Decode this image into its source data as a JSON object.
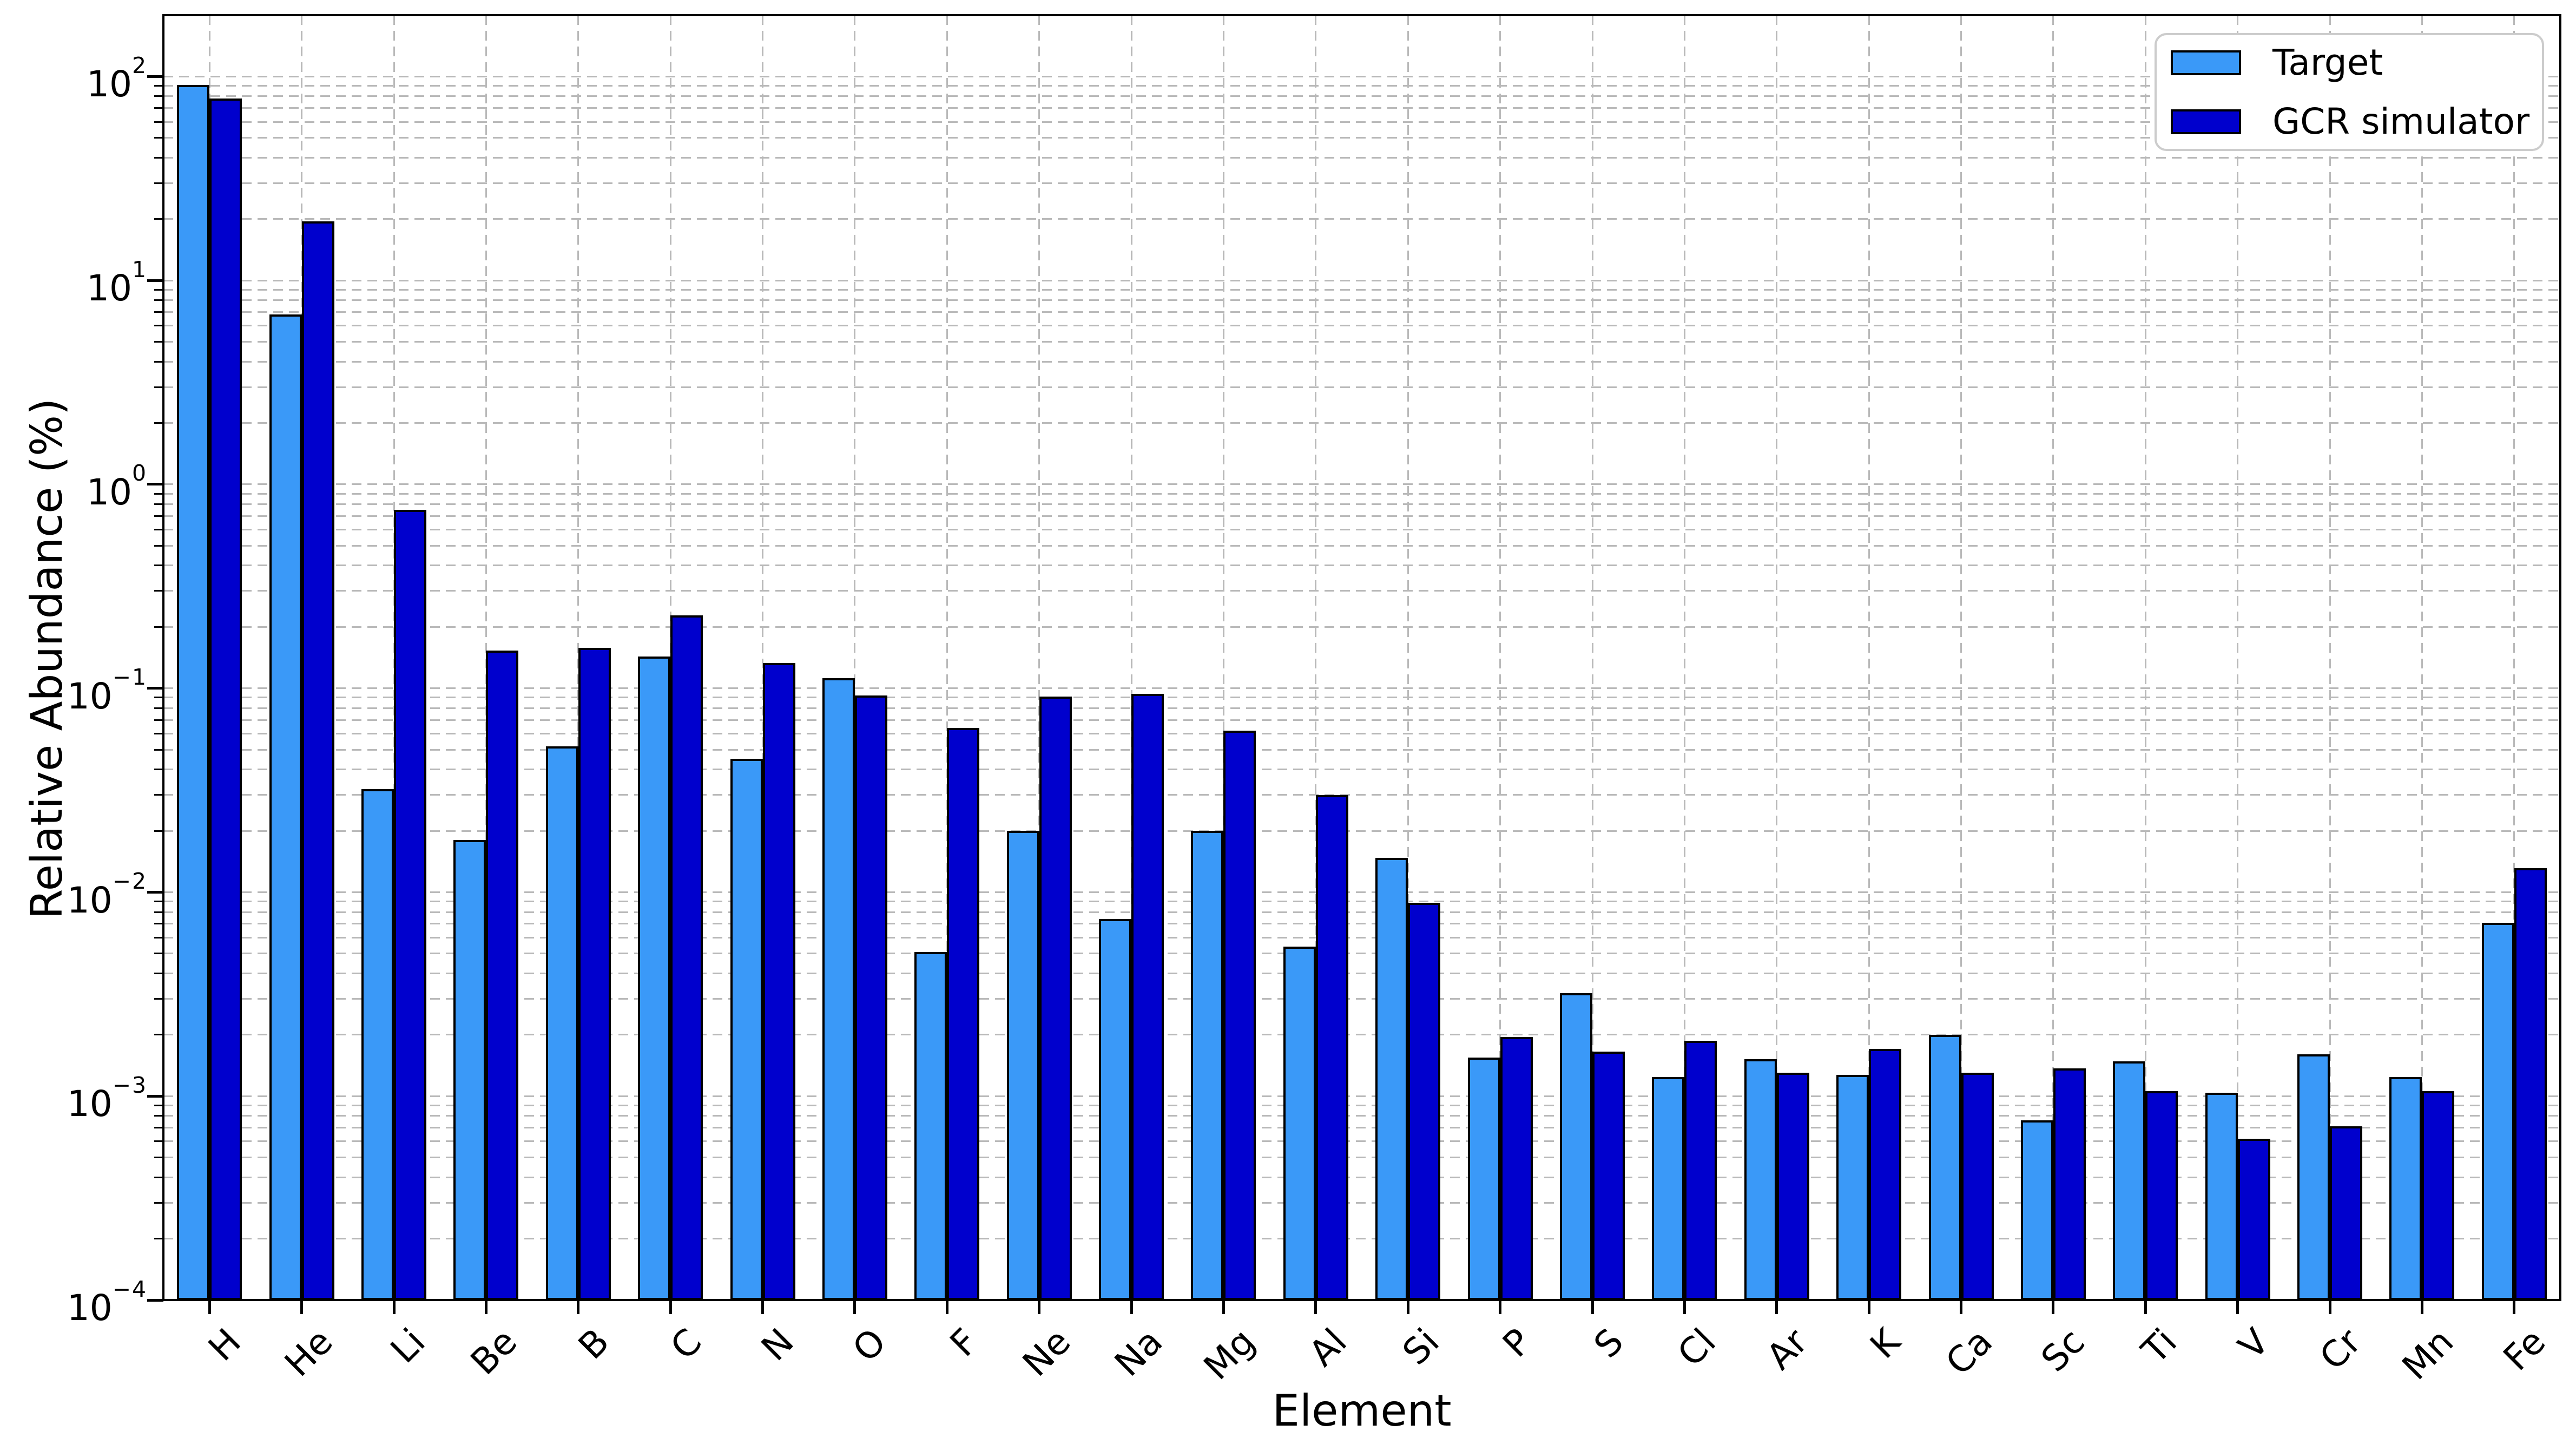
{
  "axes": {
    "x_title": "Element",
    "y_title": "Relative Abundance (%)"
  },
  "chart_data": {
    "type": "bar",
    "title": "",
    "xlabel": "Element",
    "ylabel": "Relative Abundance (%)",
    "yscale": "log",
    "ylim": [
      0.0001,
      200
    ],
    "y_major_tick_exponents": [
      2,
      1,
      0,
      -1,
      -2,
      -3,
      -4
    ],
    "grid": "major+minor horizontal and per-category vertical, dashed gray",
    "legend_position": "upper right",
    "bar_edge_color": "#000000",
    "gridline_color": "#b9b9b9",
    "categories": [
      "H",
      "He",
      "Li",
      "Be",
      "B",
      "C",
      "N",
      "O",
      "F",
      "Ne",
      "Na",
      "Mg",
      "Al",
      "Si",
      "P",
      "S",
      "Cl",
      "Ar",
      "K",
      "Ca",
      "Sc",
      "Ti",
      "V",
      "Cr",
      "Mn",
      "Fe"
    ],
    "series": [
      {
        "name": "Target",
        "color": "#3a99f8",
        "values": [
          91,
          6.8,
          0.032,
          0.018,
          0.052,
          0.143,
          0.045,
          0.112,
          0.0051,
          0.02,
          0.0074,
          0.02,
          0.0054,
          0.0147,
          0.00155,
          0.0032,
          0.00124,
          0.00152,
          0.00127,
          0.002,
          0.00076,
          0.00148,
          0.00104,
          0.0016,
          0.00124,
          0.0071
        ]
      },
      {
        "name": "GCR simulator",
        "color": "#0000cd",
        "values": [
          78,
          19.5,
          0.75,
          0.153,
          0.158,
          0.228,
          0.133,
          0.092,
          0.064,
          0.091,
          0.094,
          0.062,
          0.03,
          0.0089,
          0.00195,
          0.00165,
          0.00187,
          0.0013,
          0.0017,
          0.0013,
          0.00137,
          0.00106,
          0.00062,
          0.00071,
          0.00106,
          0.0131
        ]
      }
    ]
  }
}
